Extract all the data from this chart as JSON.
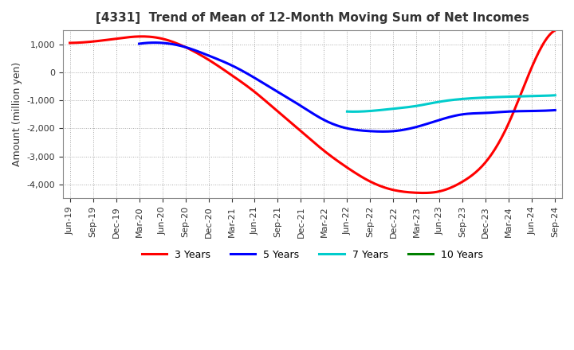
{
  "title": "[4331]  Trend of Mean of 12-Month Moving Sum of Net Incomes",
  "ylabel": "Amount (million yen)",
  "background_color": "#ffffff",
  "grid_color": "#aaaaaa",
  "ylim": [
    -4500,
    1500
  ],
  "yticks": [
    1000,
    0,
    -1000,
    -2000,
    -3000,
    -4000
  ],
  "x_labels": [
    "Jun-19",
    "Sep-19",
    "Dec-19",
    "Mar-20",
    "Jun-20",
    "Sep-20",
    "Dec-20",
    "Mar-21",
    "Jun-21",
    "Sep-21",
    "Dec-21",
    "Mar-22",
    "Jun-22",
    "Sep-22",
    "Dec-22",
    "Mar-23",
    "Jun-23",
    "Sep-23",
    "Dec-23",
    "Mar-24",
    "Jun-24",
    "Sep-24"
  ],
  "lines": {
    "3yr": {
      "color": "#ff0000",
      "label": "3 Years",
      "values": [
        1050,
        1100,
        1200,
        1280,
        1200,
        900,
        450,
        -100,
        -700,
        -1400,
        -2100,
        -2800,
        -3400,
        -3900,
        -4200,
        -4300,
        -4250,
        -3900,
        -3200,
        -1800,
        200,
        1500
      ]
    },
    "5yr": {
      "color": "#0000ff",
      "label": "5 Years",
      "values": [
        null,
        null,
        null,
        1020,
        1050,
        900,
        600,
        250,
        -200,
        -700,
        -1200,
        -1700,
        -2000,
        -2100,
        -2100,
        -1950,
        -1700,
        -1500,
        -1450,
        -1400,
        -1380,
        -1350
      ]
    },
    "7yr": {
      "color": "#00cccc",
      "label": "7 Years",
      "values": [
        null,
        null,
        null,
        null,
        null,
        null,
        null,
        null,
        null,
        null,
        null,
        null,
        -1400,
        -1380,
        -1300,
        -1200,
        -1050,
        -950,
        -900,
        -870,
        -850,
        -820
      ]
    },
    "10yr": {
      "color": "#008000",
      "label": "10 Years",
      "values": [
        null,
        null,
        null,
        null,
        null,
        null,
        null,
        null,
        null,
        null,
        null,
        null,
        null,
        null,
        null,
        null,
        null,
        null,
        null,
        null,
        null,
        null
      ]
    }
  }
}
